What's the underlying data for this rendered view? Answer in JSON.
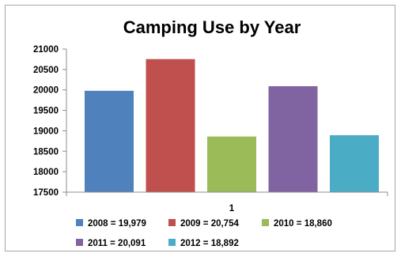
{
  "chart_data": {
    "type": "bar",
    "title": "Camping Use by Year",
    "xlabel": "",
    "ylabel": "",
    "categories": [
      "1"
    ],
    "ylim": [
      17500,
      21000
    ],
    "yticks": [
      17500,
      18000,
      18500,
      19000,
      19500,
      20000,
      20500,
      21000
    ],
    "grid": false,
    "legend_position": "bottom",
    "series": [
      {
        "name": "2008 = 19,979",
        "values": [
          19979
        ],
        "color": "#4f81bd"
      },
      {
        "name": "2009 = 20,754",
        "values": [
          20754
        ],
        "color": "#c0504d"
      },
      {
        "name": "2010 = 18,860",
        "values": [
          18860
        ],
        "color": "#9bbb59"
      },
      {
        "name": "2011 = 20,091",
        "values": [
          20091
        ],
        "color": "#8064a2"
      },
      {
        "name": "2012 = 18,892",
        "values": [
          18892
        ],
        "color": "#4bacc6"
      }
    ]
  }
}
